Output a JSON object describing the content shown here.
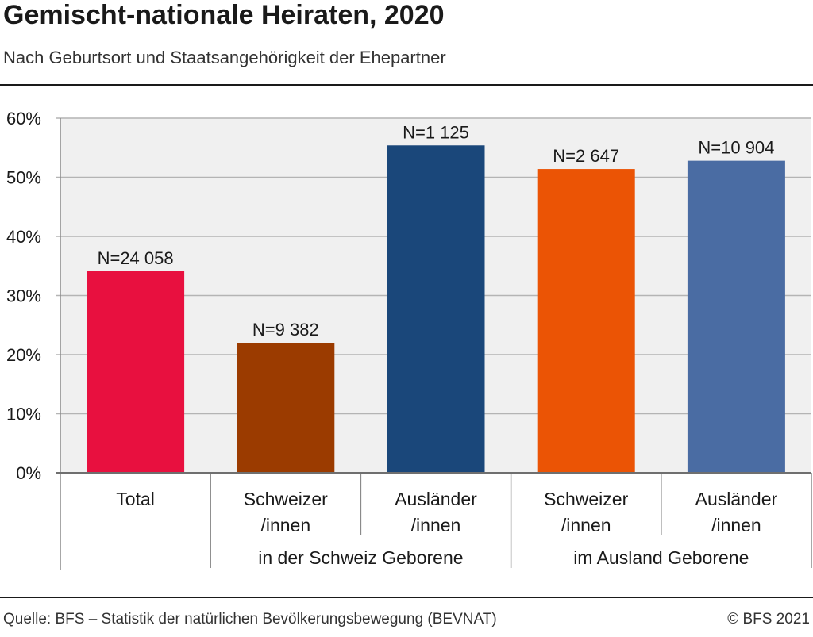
{
  "header": {
    "title": "Gemischt-nationale Heiraten, 2020",
    "subtitle": "Nach Geburtsort und Staatsangehörigkeit der Ehepartner"
  },
  "footer": {
    "source": "Quelle: BFS – Statistik der natürlichen Bevölkerungsbewegung (BEVNAT)",
    "copyright": "© BFS 2021"
  },
  "chart_data": {
    "type": "bar",
    "title": "Gemischt-nationale Heiraten, 2020",
    "subtitle": "Nach Geburtsort und Staatsangehörigkeit der Ehepartner",
    "ylim": [
      0,
      60
    ],
    "yticks": [
      0,
      10,
      20,
      30,
      40,
      50,
      60
    ],
    "ytick_labels": [
      "0%",
      "10%",
      "20%",
      "30%",
      "40%",
      "50%",
      "60%"
    ],
    "grid": true,
    "bars": [
      {
        "category": [
          "Total"
        ],
        "value": 34.1,
        "label": "N=24 058",
        "color": "#e8103f"
      },
      {
        "category": [
          "Schweizer",
          "/innen"
        ],
        "value": 22.0,
        "label": "N=9 382",
        "color": "#9b3b00"
      },
      {
        "category": [
          "Ausländer",
          "/innen"
        ],
        "value": 55.4,
        "label": "N=1 125",
        "color": "#1a477a"
      },
      {
        "category": [
          "Schweizer",
          "/innen"
        ],
        "value": 51.4,
        "label": "N=2 647",
        "color": "#eb5405"
      },
      {
        "category": [
          "Ausländer",
          "/innen"
        ],
        "value": 52.8,
        "label": "N=10 904",
        "color": "#4a6ca3"
      }
    ],
    "groups": [
      {
        "label": "in der Schweiz Geborene",
        "bars": [
          1,
          2
        ]
      },
      {
        "label": "im Ausland Geborene",
        "bars": [
          3,
          4
        ]
      }
    ]
  }
}
